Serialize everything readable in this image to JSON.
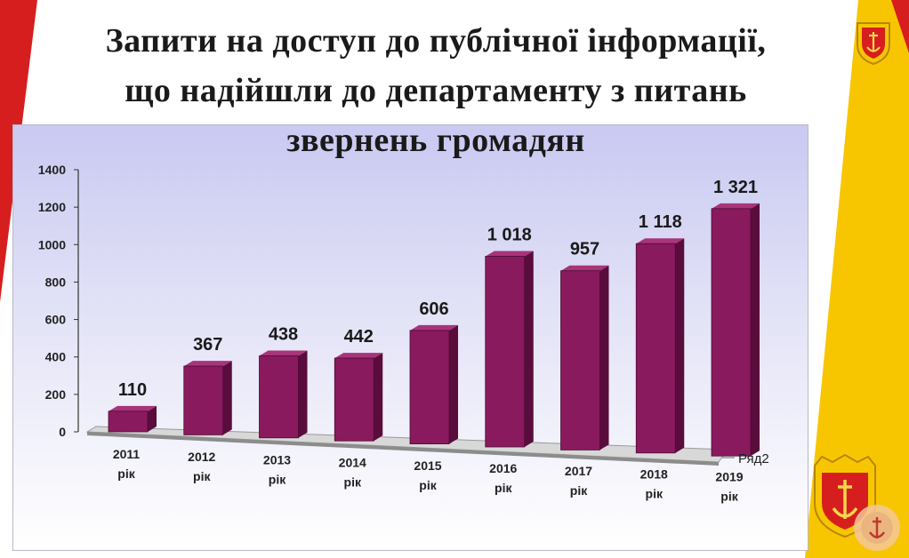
{
  "slide": {
    "title_lines": [
      "Запити на доступ до публічної інформації,",
      "що надійшли до департаменту з питань",
      "звернень громадян"
    ]
  },
  "colors": {
    "bar_front": "#8a1a5e",
    "bar_side": "#5a0d3c",
    "bar_top": "#a8347a",
    "accent_red": "#d71e1e",
    "accent_yellow": "#f7c600",
    "panel_top": "#c9c9f2"
  },
  "chart_data": {
    "type": "bar",
    "title": "",
    "categories": [
      [
        "2011",
        "рік"
      ],
      [
        "2012",
        "рік"
      ],
      [
        "2013",
        "рік"
      ],
      [
        "2014",
        "рік"
      ],
      [
        "2015",
        "рік"
      ],
      [
        "2016",
        "рік"
      ],
      [
        "2017",
        "рік"
      ],
      [
        "2018",
        "рік"
      ],
      [
        "2019",
        "рік"
      ]
    ],
    "series": [
      {
        "name": "Ряд2",
        "values": [
          110,
          367,
          438,
          442,
          606,
          1018,
          957,
          1118,
          1321
        ]
      }
    ],
    "data_labels": [
      "110",
      "367",
      "438",
      "442",
      "606",
      "1 018",
      "957",
      "1 118",
      "1 321"
    ],
    "yticks": [
      "0",
      "200",
      "400",
      "600",
      "800",
      "1000",
      "1200",
      "1400"
    ],
    "ylim": [
      0,
      1400
    ],
    "grid": false,
    "legend": "bottom-right",
    "style": "3d-column"
  }
}
